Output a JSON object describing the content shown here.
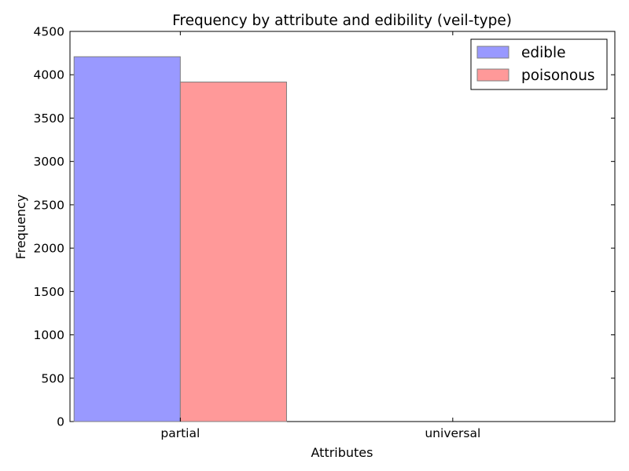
{
  "chart_data": {
    "type": "bar",
    "title": "Frequency by attribute and edibility (veil-type)",
    "xlabel": "Attributes",
    "ylabel": "Frequency",
    "categories": [
      "partial",
      "universal"
    ],
    "series": [
      {
        "name": "edible",
        "color": "#9999ff",
        "values": [
          4208,
          0
        ]
      },
      {
        "name": "poisonous",
        "color": "#ff9999",
        "values": [
          3916,
          0
        ]
      }
    ],
    "ylim": [
      0,
      4500
    ],
    "yticks": [
      0,
      500,
      1000,
      1500,
      2000,
      2500,
      3000,
      3500,
      4000,
      4500
    ],
    "grid": false,
    "legend_position": "top-right"
  }
}
